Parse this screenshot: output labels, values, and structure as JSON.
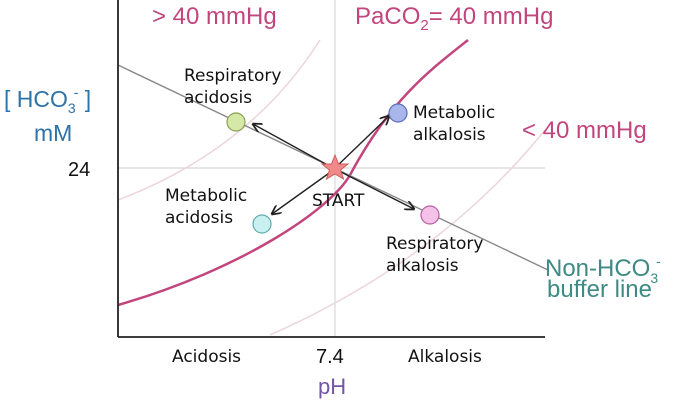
{
  "diagram": {
    "isobars": {
      "high_label": "> 40 mmHg",
      "mid_label_prefix": "PaCO",
      "mid_label_sub": "2",
      "mid_label_suffix": "= 40 mmHg",
      "low_label": "< 40 mmHg"
    },
    "y_axis": {
      "label_line1_prefix": "[ HCO",
      "label_line1_sub": "3",
      "label_line1_sup": "-",
      "label_line1_suffix": " ]",
      "label_line2": "mM",
      "tick_value": "24"
    },
    "x_axis": {
      "tick_value": "7.4",
      "label": "pH",
      "left_word": "Acidosis",
      "right_word": "Alkalosis"
    },
    "buffer_line": {
      "line1_prefix": "Non-HCO",
      "line1_sub": "3",
      "line1_sup": "-",
      "line2": "buffer line"
    },
    "start_label": "START",
    "states": [
      {
        "id": "resp-acidosis",
        "line1": "Respiratory",
        "line2": "acidosis",
        "color": "#d6e8a8"
      },
      {
        "id": "meta-alkalosis",
        "line1": "Metabolic",
        "line2": "alkalosis",
        "color": "#a9b6ec"
      },
      {
        "id": "meta-acidosis",
        "line1": "Metabolic",
        "line2": "acidosis",
        "color": "#c9f1f2"
      },
      {
        "id": "resp-alkalosis",
        "line1": "Respiratory",
        "line2": "alkalosis",
        "color": "#f4c2e8"
      }
    ],
    "colors": {
      "isobar_main": "#c2457e",
      "isobar_faint": "#ecd4de",
      "buffer_line": "#888888",
      "start_star": "#f08a8a",
      "axis": "#222222"
    }
  }
}
